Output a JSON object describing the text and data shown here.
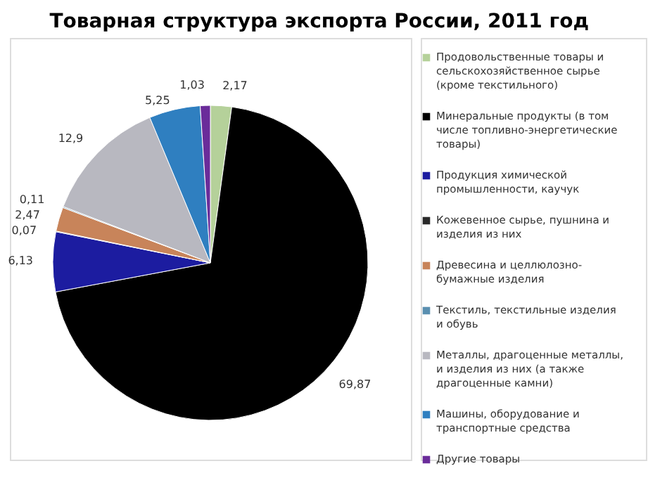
{
  "chart_data": {
    "type": "pie",
    "title": "Товарная структура экспорта России, 2011 год",
    "categories": [
      "Продовольственные товары и сельскохозяйственное сырье (кроме текстильного)",
      "Минеральные продукты (в том числе топливно-энергетические товары)",
      "Продукция химической промышленности, каучук",
      "Кожевенное сырье, пушнина и изделия из них",
      "Древесина и целлюлозно-бумажные изделия",
      "Текстиль, текстильные изделия и обувь",
      "Металлы, драгоценные металлы, и изделия из них (а также драгоценные камни)",
      "Машины, оборудование и транспортные средства",
      "Другие товары"
    ],
    "values": [
      2.17,
      69.87,
      6.13,
      0.07,
      2.47,
      0.11,
      12.9,
      5.25,
      1.03
    ],
    "value_labels": [
      "2,17",
      "69,87",
      "6,13",
      "0,07",
      "2,47",
      "0,11",
      "12,9",
      "5,25",
      "1,03"
    ],
    "colors": [
      "#b5d19a",
      "#000000",
      "#1c1ca0",
      "#2a2a2a",
      "#c8845a",
      "#5a8fb0",
      "#b8b8c0",
      "#2f7fc0",
      "#6a2c9a"
    ],
    "legend": "right"
  }
}
